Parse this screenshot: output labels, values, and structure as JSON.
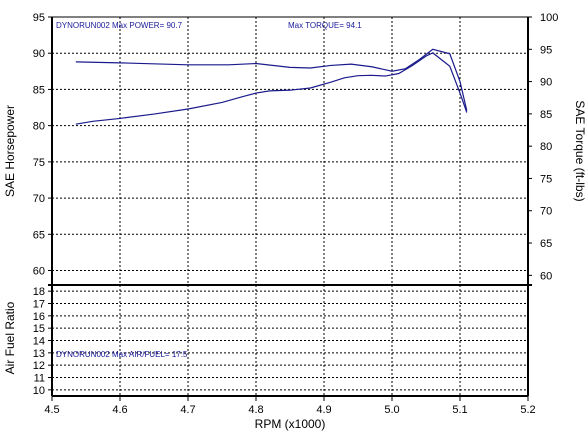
{
  "chart_data": {
    "type": "line",
    "x_label": "RPM (x1000)",
    "x_ticks": [
      "4.5",
      "4.6",
      "4.7",
      "4.8",
      "4.9",
      "5.0",
      "5.1",
      "5.2"
    ],
    "x_range": [
      4.5,
      5.2
    ],
    "top_panel": {
      "left_label": "SAE Horsepower",
      "right_label": "SAE Torque (ft-lbs)",
      "left_range": [
        58,
        95
      ],
      "left_ticks": [
        "60",
        "65",
        "70",
        "75",
        "80",
        "85",
        "90",
        "95"
      ],
      "right_range": [
        58.5,
        100
      ],
      "right_ticks": [
        "60",
        "65",
        "70",
        "75",
        "80",
        "85",
        "90",
        "95",
        "100"
      ],
      "annotations": [
        "DYNORUN002 Max POWER= 90.7",
        "Max TORQUE= 94.1"
      ],
      "series": [
        {
          "axis": "left",
          "color": "#1a1a8c",
          "points": [
            [
              4.535,
              80.2
            ],
            [
              4.56,
              80.6
            ],
            [
              4.6,
              81.0
            ],
            [
              4.65,
              81.6
            ],
            [
              4.7,
              82.3
            ],
            [
              4.75,
              83.2
            ],
            [
              4.78,
              84.0
            ],
            [
              4.8,
              84.5
            ],
            [
              4.82,
              84.8
            ],
            [
              4.85,
              84.9
            ],
            [
              4.88,
              85.2
            ],
            [
              4.91,
              86.0
            ],
            [
              4.93,
              86.6
            ],
            [
              4.95,
              86.9
            ],
            [
              4.97,
              86.95
            ],
            [
              4.99,
              86.85
            ],
            [
              5.01,
              87.2
            ],
            [
              5.03,
              88.3
            ],
            [
              5.05,
              89.6
            ],
            [
              5.06,
              90.05
            ],
            [
              5.085,
              88.2
            ],
            [
              5.1,
              84.5
            ],
            [
              5.11,
              81.8
            ]
          ]
        },
        {
          "axis": "right",
          "color": "#1a1a8c",
          "points": [
            [
              4.535,
              93.05
            ],
            [
              4.6,
              92.9
            ],
            [
              4.7,
              92.6
            ],
            [
              4.76,
              92.6
            ],
            [
              4.8,
              92.8
            ],
            [
              4.85,
              92.2
            ],
            [
              4.88,
              92.1
            ],
            [
              4.91,
              92.5
            ],
            [
              4.94,
              92.7
            ],
            [
              4.97,
              92.3
            ],
            [
              5.0,
              91.6
            ],
            [
              5.02,
              92.0
            ],
            [
              5.04,
              93.4
            ],
            [
              5.06,
              95.0
            ],
            [
              5.085,
              94.3
            ],
            [
              5.1,
              90.0
            ],
            [
              5.11,
              85.5
            ]
          ]
        }
      ]
    },
    "bottom_panel": {
      "left_label": "Air Fuel Ratio",
      "range": [
        9.5,
        18.5
      ],
      "ticks": [
        "10",
        "11",
        "12",
        "13",
        "14",
        "15",
        "16",
        "17",
        "18"
      ],
      "annotations": [
        "DYNORUN002 Max AIR/FUEL= 17.5"
      ],
      "series": []
    }
  }
}
